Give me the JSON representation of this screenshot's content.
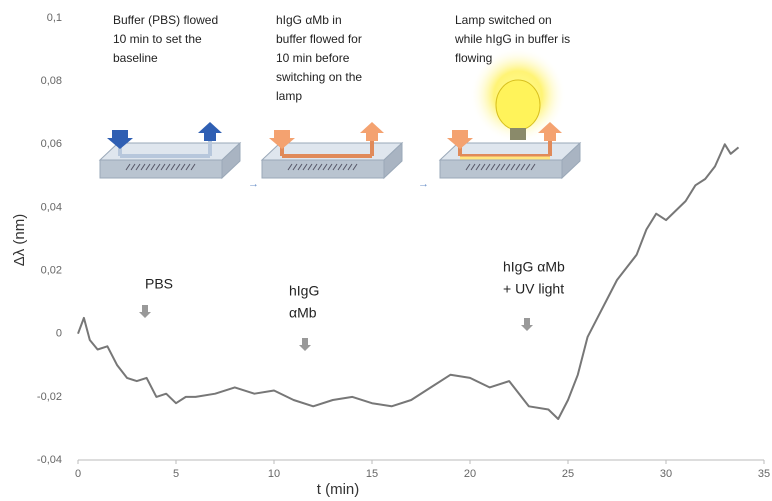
{
  "chart_data": {
    "type": "line",
    "xlabel": "t (min)",
    "ylabel": "Δλ (nm)",
    "x": [
      0,
      0.3,
      0.6,
      1,
      1.5,
      2,
      2.5,
      3,
      3.5,
      4,
      4.5,
      5,
      5.5,
      6,
      7,
      8,
      9,
      10,
      11,
      12,
      13,
      14,
      15,
      16,
      17,
      18,
      19,
      20,
      21,
      22,
      23,
      24,
      24.5,
      25,
      25.5,
      26,
      26.5,
      27,
      27.5,
      28,
      28.5,
      29,
      29.5,
      30,
      30.5,
      31,
      31.5,
      32,
      32.5,
      33,
      33.3,
      33.7
    ],
    "values": [
      0,
      0.005,
      -0.002,
      -0.005,
      -0.004,
      -0.01,
      -0.014,
      -0.015,
      -0.014,
      -0.02,
      -0.019,
      -0.022,
      -0.02,
      -0.02,
      -0.019,
      -0.017,
      -0.019,
      -0.018,
      -0.021,
      -0.023,
      -0.021,
      -0.02,
      -0.022,
      -0.023,
      -0.021,
      -0.017,
      -0.013,
      -0.014,
      -0.017,
      -0.015,
      -0.023,
      -0.024,
      -0.027,
      -0.021,
      -0.013,
      -0.001,
      0.005,
      0.011,
      0.017,
      0.021,
      0.025,
      0.033,
      0.038,
      0.036,
      0.039,
      0.042,
      0.047,
      0.049,
      0.053,
      0.06,
      0.057,
      0.059
    ],
    "color": "#777777",
    "xlim": [
      0,
      35
    ],
    "xticks": [
      0,
      5,
      10,
      15,
      20,
      25,
      30,
      35
    ],
    "ylim": [
      -0.04,
      0.1
    ],
    "yticks": [
      {
        "value": -0.04,
        "label": "-0,04"
      },
      {
        "value": -0.02,
        "label": "-0,02"
      },
      0,
      {
        "value": 0.02,
        "label": "0,02"
      },
      {
        "value": 0.04,
        "label": "0,04"
      },
      {
        "value": 0.06,
        "label": "0,06"
      },
      {
        "value": 0.08,
        "label": "0,08"
      },
      {
        "value": 0.1,
        "label": "0,1"
      }
    ],
    "annotations": [
      [
        "PBS"
      ],
      [
        "hIgG",
        "αMb"
      ],
      [
        "hIgG αMb",
        "+ UV light"
      ]
    ],
    "captions": [
      [
        "Buffer (PBS) flowed",
        "10 min to set the",
        "baseline"
      ],
      [
        "hIgG αMb in",
        "buffer flowed for",
        "10 min before",
        "switching on the",
        "lamp"
      ],
      [
        "Lamp switched on",
        "while hIgG in buffer is",
        "flowing"
      ]
    ]
  }
}
